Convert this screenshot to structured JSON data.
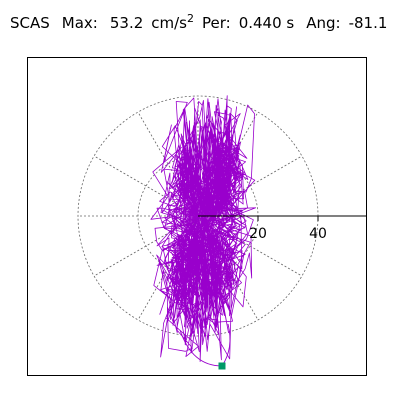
{
  "header": {
    "station": "SCAS",
    "max_label": "Max:",
    "max_value": "53.2",
    "max_unit": "cm/s",
    "max_unit_exp": "2",
    "period_label": "Per:",
    "period_value": "0.440 s",
    "angle_label": "Ang:",
    "angle_value": "-81.1"
  },
  "chart_data": {
    "type": "scatter",
    "subtype": "polar-particle-motion",
    "radial_ticks": [
      "20",
      "40"
    ],
    "radial_tick_values": [
      20,
      40
    ],
    "ring_values": [
      20,
      40
    ],
    "angular_gridlines_deg": [
      0,
      30,
      60,
      90,
      120,
      150,
      180,
      210,
      240,
      270,
      300,
      330
    ],
    "grid": "dotted",
    "axis": "positive-x solid",
    "max_amplitude": 53.2,
    "max_angle_deg": -81.1,
    "trace_color": "#9900cc",
    "marker_color": "#009966",
    "marker_shape": "square",
    "marker_point": {
      "x": 8,
      "y": -50
    }
  }
}
